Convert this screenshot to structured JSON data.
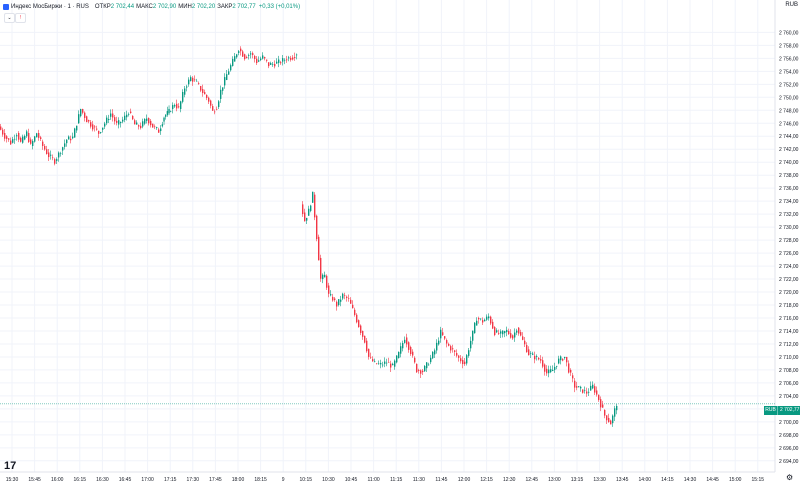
{
  "legend": {
    "title": "Индекс МосБиржи · 1 · RUS",
    "open_label": "ОТКР",
    "open": "2 702,44",
    "high_label": "МАКС",
    "high": "2 702,90",
    "low_label": "МИН",
    "low": "2 702,20",
    "close_label": "ЗАКР",
    "close": "2 702,77",
    "change": "+0,33 (+0,01%)"
  },
  "controls": {
    "collapse_icon": "chevron-down-icon",
    "collapse_label": "⌄",
    "alert_icon": "flag-icon",
    "alert_label": "!",
    "currency": "RUB"
  },
  "colors": {
    "up": "#089981",
    "down": "#f23645",
    "grid": "#f0f3fa",
    "text": "#131722",
    "last_price_line": "#089981"
  },
  "price_tag": {
    "symbol": "RUB",
    "price": "2 702,77",
    "sub": "00:05"
  },
  "branding": {
    "logo": "17"
  },
  "settings_icon": "gear-icon",
  "chart_data": {
    "type": "candlestick",
    "price_axis_ticks": [
      "2 760,00",
      "2 758,00",
      "2 756,00",
      "2 754,00",
      "2 752,00",
      "2 750,00",
      "2 748,00",
      "2 746,00",
      "2 744,00",
      "2 742,00",
      "2 740,00",
      "2 738,00",
      "2 736,00",
      "2 734,00",
      "2 732,00",
      "2 730,00",
      "2 728,00",
      "2 726,00",
      "2 724,00",
      "2 722,00",
      "2 720,00",
      "2 718,00",
      "2 716,00",
      "2 714,00",
      "2 712,00",
      "2 710,00",
      "2 708,00",
      "2 706,00",
      "2 704,00",
      "2 702,00",
      "2 700,00",
      "2 698,00",
      "2 696,00",
      "2 694,00"
    ],
    "ylim": [
      2693.2,
      2761.6
    ],
    "time_axis_ticks": [
      "15:30",
      "15:45",
      "16:00",
      "16:15",
      "16:30",
      "16:45",
      "17:00",
      "17:15",
      "17:30",
      "17:45",
      "18:00",
      "18:15",
      "9",
      "10:15",
      "10:30",
      "10:45",
      "11:00",
      "11:15",
      "11:30",
      "11:45",
      "12:00",
      "12:15",
      "12:30",
      "12:45",
      "13:00",
      "13:15",
      "13:30",
      "13:45",
      "14:00",
      "14:15",
      "14:30",
      "14:45",
      "15:00",
      "15:15"
    ],
    "segments": [
      {
        "day": "prev",
        "path": [
          [
            0,
            2745.5
          ],
          [
            6,
            2744
          ],
          [
            12,
            2743
          ],
          [
            18,
            2744.5
          ],
          [
            22,
            2743
          ],
          [
            28,
            2744.5
          ],
          [
            32,
            2742.5
          ],
          [
            38,
            2744.5
          ],
          [
            44,
            2742.5
          ],
          [
            50,
            2741
          ],
          [
            56,
            2740.2
          ],
          [
            62,
            2741.8
          ],
          [
            68,
            2743.5
          ],
          [
            74,
            2743.8
          ],
          [
            78,
            2746
          ],
          [
            82,
            2748.2
          ],
          [
            88,
            2746.5
          ],
          [
            94,
            2745.5
          ],
          [
            100,
            2744.5
          ],
          [
            106,
            2746
          ],
          [
            112,
            2747.5
          ],
          [
            118,
            2745.8
          ],
          [
            124,
            2746.5
          ],
          [
            130,
            2747.8
          ],
          [
            136,
            2745.8
          ],
          [
            142,
            2745.5
          ],
          [
            148,
            2746.8
          ],
          [
            154,
            2745.5
          ],
          [
            160,
            2744.8
          ],
          [
            165,
            2747
          ],
          [
            170,
            2747.8
          ],
          [
            176,
            2749
          ],
          [
            180,
            2748.2
          ],
          [
            186,
            2751.5
          ],
          [
            192,
            2753
          ],
          [
            198,
            2752.2
          ],
          [
            204,
            2750.8
          ],
          [
            210,
            2749.5
          ],
          [
            214,
            2747.8
          ],
          [
            218,
            2748.5
          ],
          [
            222,
            2751
          ],
          [
            228,
            2753.5
          ],
          [
            234,
            2755.5
          ],
          [
            240,
            2757.5
          ],
          [
            246,
            2756.2
          ],
          [
            252,
            2756.8
          ],
          [
            258,
            2755.5
          ],
          [
            264,
            2756.2
          ],
          [
            270,
            2755
          ],
          [
            276,
            2755.2
          ],
          [
            282,
            2755.5
          ],
          [
            288,
            2756
          ],
          [
            294,
            2756.2
          ],
          [
            298,
            2756.8
          ]
        ]
      },
      {
        "day": "today",
        "path": [
          [
            302,
            2733.5
          ],
          [
            306,
            2731
          ],
          [
            310,
            2732.5
          ],
          [
            314,
            2735
          ],
          [
            318,
            2728.5
          ],
          [
            322,
            2722
          ],
          [
            326,
            2722.5
          ],
          [
            330,
            2719.5
          ],
          [
            334,
            2719
          ],
          [
            338,
            2718
          ],
          [
            344,
            2719.5
          ],
          [
            350,
            2718.8
          ],
          [
            356,
            2716.5
          ],
          [
            362,
            2714
          ],
          [
            366,
            2712.5
          ],
          [
            370,
            2710
          ],
          [
            376,
            2709
          ],
          [
            382,
            2708.8
          ],
          [
            388,
            2709.2
          ],
          [
            394,
            2708.5
          ],
          [
            400,
            2710.5
          ],
          [
            406,
            2713
          ],
          [
            412,
            2710.8
          ],
          [
            418,
            2708
          ],
          [
            424,
            2707.8
          ],
          [
            430,
            2709.2
          ],
          [
            436,
            2711
          ],
          [
            442,
            2713.8
          ],
          [
            448,
            2712
          ],
          [
            454,
            2711
          ],
          [
            460,
            2709.8
          ],
          [
            466,
            2709
          ],
          [
            472,
            2712.5
          ],
          [
            478,
            2716
          ],
          [
            484,
            2715.5
          ],
          [
            490,
            2716.2
          ],
          [
            496,
            2713.8
          ],
          [
            502,
            2713.5
          ],
          [
            508,
            2714
          ],
          [
            514,
            2713
          ],
          [
            518,
            2714.5
          ],
          [
            524,
            2712.5
          ],
          [
            530,
            2710.5
          ],
          [
            536,
            2710
          ],
          [
            542,
            2709.5
          ],
          [
            548,
            2707.5
          ],
          [
            554,
            2708
          ],
          [
            560,
            2709.5
          ],
          [
            566,
            2710
          ],
          [
            570,
            2708
          ],
          [
            576,
            2705.5
          ],
          [
            582,
            2705
          ],
          [
            588,
            2704.5
          ],
          [
            594,
            2705.5
          ],
          [
            600,
            2703.5
          ],
          [
            606,
            2701
          ],
          [
            612,
            2699.8
          ],
          [
            618,
            2702.8
          ]
        ]
      }
    ],
    "last_price": 2702.77
  }
}
